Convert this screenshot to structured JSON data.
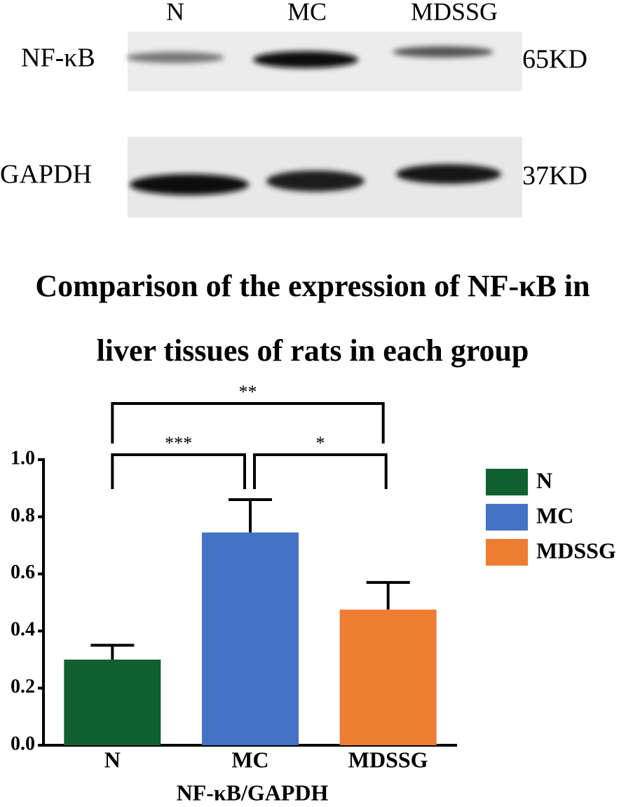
{
  "blot": {
    "lanes": [
      "N",
      "MC",
      "MDSSG"
    ],
    "rows": [
      {
        "protein": "NF-κB",
        "size": "65KD"
      },
      {
        "protein": "GAPDH",
        "size": "37KD"
      }
    ]
  },
  "chart_data": {
    "type": "bar",
    "title": "Comparison of the expression of NF-κB in liver tissues of rats in each group",
    "x_label": "NF-κB/GAPDH",
    "categories": [
      "N",
      "MC",
      "MDSSG"
    ],
    "values": [
      0.3,
      0.745,
      0.475
    ],
    "errors": [
      0.05,
      0.115,
      0.095
    ],
    "colors": [
      "#116130",
      "#4472c4",
      "#ed7d31"
    ],
    "ylim": [
      0,
      1
    ],
    "yticks": [
      {
        "value": 0,
        "label": "0.0"
      },
      {
        "value": 0.2,
        "label": "0.2"
      },
      {
        "value": 0.4,
        "label": "0.4"
      },
      {
        "value": 0.6,
        "label": "0.6"
      },
      {
        "value": 0.8,
        "label": "0.8"
      },
      {
        "value": 1,
        "label": "1.0"
      }
    ],
    "legend": "right",
    "significance": [
      {
        "groups": [
          0,
          1
        ],
        "label": "***"
      },
      {
        "groups": [
          1,
          2
        ],
        "label": "*"
      },
      {
        "groups": [
          0,
          2
        ],
        "label": "**"
      }
    ]
  }
}
